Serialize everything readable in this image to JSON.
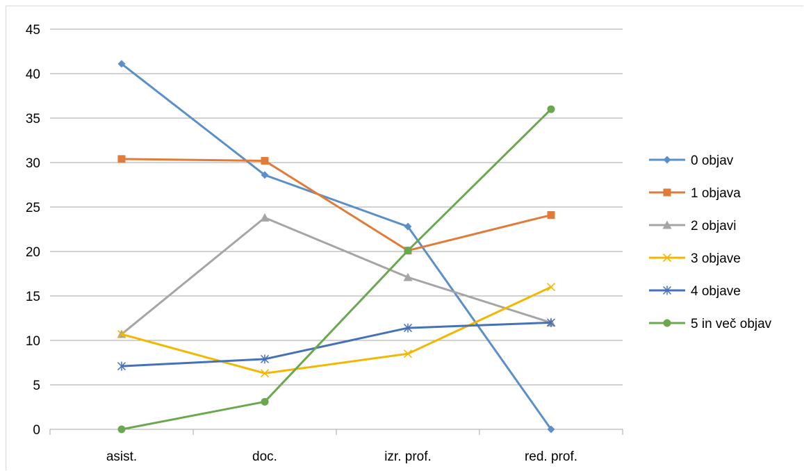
{
  "chart_data": {
    "type": "line",
    "title": "",
    "xlabel": "",
    "ylabel": "",
    "categories": [
      "asist.",
      "doc.",
      "izr. prof.",
      "red. prof."
    ],
    "ylim": [
      0,
      45
    ],
    "yticks": [
      "0",
      "5",
      "10",
      "15",
      "20",
      "25",
      "30",
      "35",
      "40",
      "45"
    ],
    "grid": true,
    "legend_position": "right",
    "series": [
      {
        "name": "0 objav",
        "values": [
          41.1,
          28.6,
          22.8,
          0
        ],
        "color": "#5b8fc9",
        "marker": "diamond"
      },
      {
        "name": "1 objava",
        "values": [
          30.4,
          30.2,
          20.1,
          24.1
        ],
        "color": "#e07b39",
        "marker": "square"
      },
      {
        "name": "2 objavi",
        "values": [
          10.7,
          23.8,
          17.1,
          12.0
        ],
        "color": "#a5a5a5",
        "marker": "triangle"
      },
      {
        "name": "3 objave",
        "values": [
          10.7,
          6.3,
          8.5,
          16.0
        ],
        "color": "#f2b800",
        "marker": "x"
      },
      {
        "name": "4 objave",
        "values": [
          7.1,
          7.9,
          11.4,
          12.0
        ],
        "color": "#4670b8",
        "marker": "star"
      },
      {
        "name": "5 in več objav",
        "values": [
          0,
          3.1,
          20.1,
          36.0
        ],
        "color": "#6aa84f",
        "marker": "circle"
      }
    ]
  }
}
